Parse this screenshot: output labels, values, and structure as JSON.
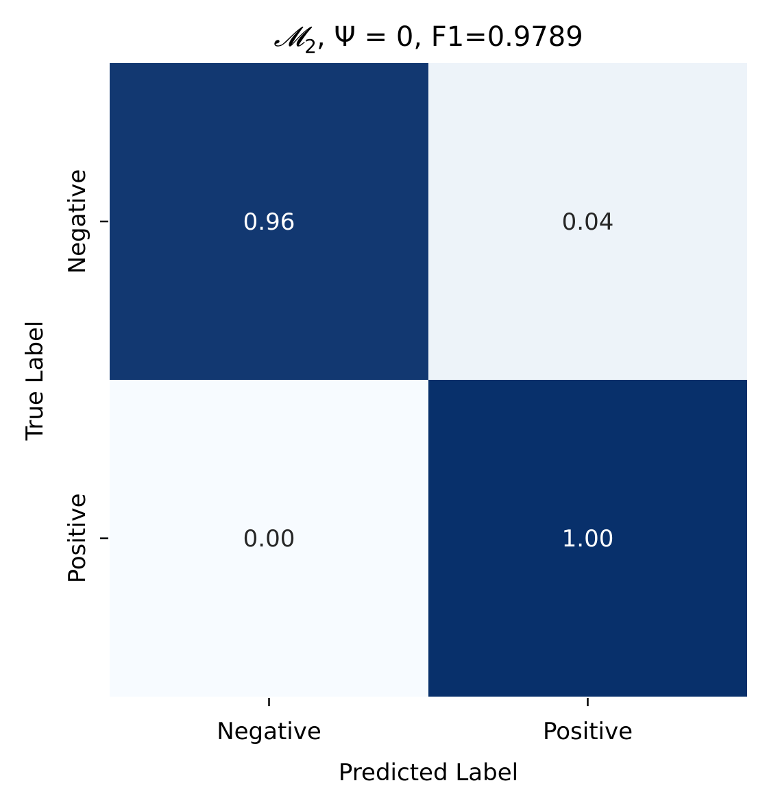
{
  "chart_data": {
    "type": "heatmap",
    "title": {
      "math": "𝓜",
      "sub": "2",
      "rest": ",    Ψ = 0, F1=0.9789"
    },
    "xlabel": "Predicted Label",
    "ylabel": "True Label",
    "x_categories": [
      "Negative",
      "Positive"
    ],
    "y_categories": [
      "Negative",
      "Positive"
    ],
    "values": [
      [
        0.96,
        0.04
      ],
      [
        0.0,
        1.0
      ]
    ],
    "value_labels": [
      [
        "0.96",
        "0.04"
      ],
      [
        "0.00",
        "1.00"
      ]
    ],
    "colormap": "Blues",
    "color_scale": [
      0,
      1
    ],
    "colors": {
      "low": "#f7fbff",
      "high": "#08306b",
      "text_on_dark": "#ffffff",
      "text_on_light": "#262626"
    },
    "colorbar": false,
    "grid": false
  }
}
